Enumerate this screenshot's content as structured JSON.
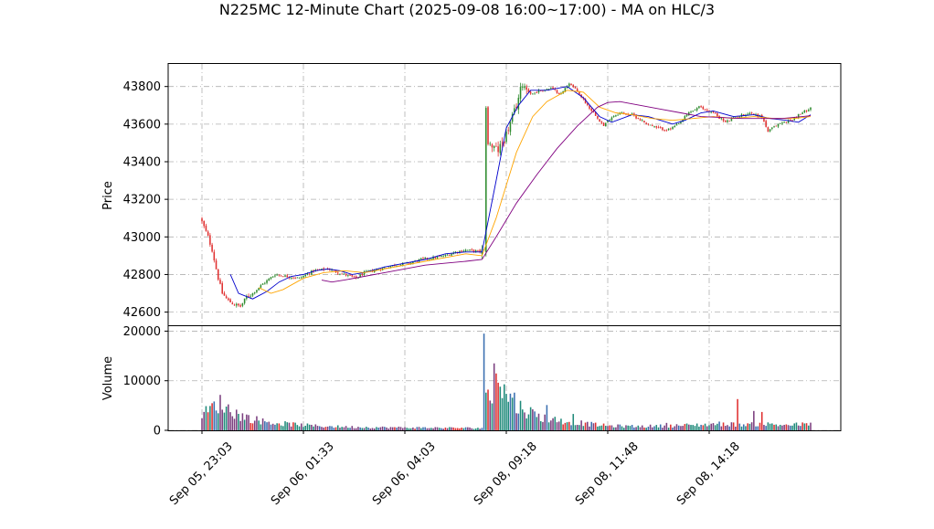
{
  "chart_data": {
    "type": "candlestick",
    "title": "N225MC 12-Minute Chart (2025-09-08 16:00~17:00) - MA on HLC/3",
    "price_panel": {
      "ylabel": "Price",
      "yticks": [
        42600,
        42800,
        43000,
        43200,
        43400,
        43600,
        43800
      ],
      "ylim": [
        42530,
        43920
      ],
      "grid": true
    },
    "volume_panel": {
      "ylabel": "Volume",
      "yticks": [
        0,
        10000,
        20000
      ],
      "ylim": [
        0,
        21000
      ],
      "grid": true
    },
    "x_ticks": [
      {
        "index": 0,
        "label": "Sep 05, 23:03"
      },
      {
        "index": 50,
        "label": "Sep 06, 01:33"
      },
      {
        "index": 100,
        "label": "Sep 06, 04:03"
      },
      {
        "index": 150,
        "label": "Sep 08, 09:18"
      },
      {
        "index": 200,
        "label": "Sep 08, 11:48"
      },
      {
        "index": 250,
        "label": "Sep 08, 14:18"
      }
    ],
    "bar_count": 301,
    "colors": {
      "up": "#2e8b2e",
      "down": "#e03030",
      "vol_a": "#7b3f7f",
      "vol_b": "#1f8a7a",
      "vol_c": "#3a6fb0",
      "ma_short": "#0000cc",
      "ma_mid": "#ffa500",
      "ma_long": "#800080",
      "grid": "#b0b0b0"
    },
    "close_anchors": [
      [
        0,
        43080
      ],
      [
        3,
        43000
      ],
      [
        5,
        42930
      ],
      [
        8,
        42780
      ],
      [
        10,
        42700
      ],
      [
        13,
        42660
      ],
      [
        16,
        42640
      ],
      [
        19,
        42630
      ],
      [
        22,
        42680
      ],
      [
        25,
        42700
      ],
      [
        30,
        42750
      ],
      [
        36,
        42800
      ],
      [
        42,
        42790
      ],
      [
        48,
        42780
      ],
      [
        55,
        42820
      ],
      [
        62,
        42830
      ],
      [
        70,
        42800
      ],
      [
        76,
        42780
      ],
      [
        80,
        42810
      ],
      [
        88,
        42830
      ],
      [
        95,
        42850
      ],
      [
        102,
        42860
      ],
      [
        108,
        42880
      ],
      [
        115,
        42890
      ],
      [
        120,
        42900
      ],
      [
        125,
        42920
      ],
      [
        130,
        42930
      ],
      [
        139,
        42920
      ],
      [
        140,
        43700
      ],
      [
        141,
        43500
      ],
      [
        143,
        43480
      ],
      [
        146,
        43460
      ],
      [
        149,
        43520
      ],
      [
        152,
        43600
      ],
      [
        155,
        43700
      ],
      [
        158,
        43820
      ],
      [
        162,
        43760
      ],
      [
        167,
        43780
      ],
      [
        172,
        43790
      ],
      [
        177,
        43760
      ],
      [
        181,
        43820
      ],
      [
        186,
        43760
      ],
      [
        190,
        43700
      ],
      [
        194,
        43650
      ],
      [
        198,
        43590
      ],
      [
        202,
        43640
      ],
      [
        206,
        43660
      ],
      [
        212,
        43650
      ],
      [
        218,
        43610
      ],
      [
        224,
        43580
      ],
      [
        230,
        43570
      ],
      [
        235,
        43600
      ],
      [
        240,
        43660
      ],
      [
        245,
        43690
      ],
      [
        252,
        43660
      ],
      [
        258,
        43610
      ],
      [
        264,
        43640
      ],
      [
        270,
        43660
      ],
      [
        276,
        43640
      ],
      [
        279,
        43560
      ],
      [
        284,
        43600
      ],
      [
        290,
        43620
      ],
      [
        296,
        43660
      ],
      [
        300,
        43690
      ]
    ],
    "ma_short_points": [
      [
        14,
        42800
      ],
      [
        18,
        42700
      ],
      [
        25,
        42670
      ],
      [
        32,
        42710
      ],
      [
        38,
        42760
      ],
      [
        44,
        42790
      ],
      [
        50,
        42800
      ],
      [
        56,
        42820
      ],
      [
        62,
        42830
      ],
      [
        68,
        42820
      ],
      [
        74,
        42800
      ],
      [
        80,
        42810
      ],
      [
        90,
        42840
      ],
      [
        100,
        42860
      ],
      [
        110,
        42880
      ],
      [
        120,
        42910
      ],
      [
        130,
        42920
      ],
      [
        138,
        42920
      ],
      [
        145,
        43300
      ],
      [
        150,
        43580
      ],
      [
        156,
        43700
      ],
      [
        162,
        43780
      ],
      [
        170,
        43780
      ],
      [
        180,
        43800
      ],
      [
        188,
        43740
      ],
      [
        196,
        43640
      ],
      [
        202,
        43610
      ],
      [
        212,
        43650
      ],
      [
        220,
        43640
      ],
      [
        226,
        43620
      ],
      [
        232,
        43600
      ],
      [
        238,
        43620
      ],
      [
        246,
        43660
      ],
      [
        252,
        43670
      ],
      [
        262,
        43640
      ],
      [
        272,
        43650
      ],
      [
        280,
        43630
      ],
      [
        288,
        43620
      ],
      [
        294,
        43610
      ],
      [
        300,
        43650
      ]
    ],
    "ma_mid_points": [
      [
        28,
        42730
      ],
      [
        34,
        42700
      ],
      [
        40,
        42720
      ],
      [
        50,
        42780
      ],
      [
        60,
        42810
      ],
      [
        70,
        42820
      ],
      [
        80,
        42810
      ],
      [
        90,
        42830
      ],
      [
        100,
        42850
      ],
      [
        110,
        42870
      ],
      [
        120,
        42890
      ],
      [
        130,
        42910
      ],
      [
        138,
        42900
      ],
      [
        145,
        43100
      ],
      [
        155,
        43450
      ],
      [
        163,
        43640
      ],
      [
        170,
        43720
      ],
      [
        180,
        43780
      ],
      [
        188,
        43770
      ],
      [
        196,
        43690
      ],
      [
        204,
        43660
      ],
      [
        212,
        43650
      ],
      [
        222,
        43630
      ],
      [
        232,
        43620
      ],
      [
        242,
        43630
      ],
      [
        252,
        43640
      ],
      [
        262,
        43630
      ],
      [
        272,
        43640
      ],
      [
        282,
        43630
      ],
      [
        292,
        43630
      ],
      [
        300,
        43640
      ]
    ],
    "ma_long_points": [
      [
        59,
        42770
      ],
      [
        64,
        42760
      ],
      [
        70,
        42770
      ],
      [
        80,
        42790
      ],
      [
        90,
        42810
      ],
      [
        100,
        42830
      ],
      [
        110,
        42850
      ],
      [
        120,
        42860
      ],
      [
        130,
        42870
      ],
      [
        138,
        42880
      ],
      [
        145,
        43000
      ],
      [
        155,
        43180
      ],
      [
        165,
        43330
      ],
      [
        175,
        43470
      ],
      [
        185,
        43590
      ],
      [
        195,
        43690
      ],
      [
        200,
        43715
      ],
      [
        206,
        43720
      ],
      [
        216,
        43700
      ],
      [
        226,
        43680
      ],
      [
        236,
        43660
      ],
      [
        246,
        43640
      ],
      [
        256,
        43635
      ],
      [
        266,
        43630
      ],
      [
        276,
        43630
      ],
      [
        286,
        43630
      ],
      [
        296,
        43640
      ],
      [
        300,
        43645
      ]
    ],
    "volume_anchors": [
      [
        0,
        3000
      ],
      [
        5,
        4500
      ],
      [
        8,
        5500
      ],
      [
        10,
        5200
      ],
      [
        14,
        4000
      ],
      [
        18,
        3200
      ],
      [
        22,
        2600
      ],
      [
        28,
        2000
      ],
      [
        35,
        1500
      ],
      [
        45,
        1200
      ],
      [
        55,
        900
      ],
      [
        70,
        700
      ],
      [
        85,
        600
      ],
      [
        100,
        550
      ],
      [
        120,
        500
      ],
      [
        139,
        450
      ],
      [
        140,
        19000
      ],
      [
        141,
        7500
      ],
      [
        143,
        6000
      ],
      [
        145,
        13000
      ],
      [
        147,
        9000
      ],
      [
        150,
        7000
      ],
      [
        155,
        5000
      ],
      [
        160,
        4000
      ],
      [
        166,
        2800
      ],
      [
        172,
        2200
      ],
      [
        180,
        1800
      ],
      [
        190,
        1300
      ],
      [
        200,
        900
      ],
      [
        215,
        800
      ],
      [
        230,
        900
      ],
      [
        245,
        1100
      ],
      [
        255,
        1300
      ],
      [
        265,
        1200
      ],
      [
        275,
        1300
      ],
      [
        285,
        1100
      ],
      [
        300,
        1200
      ]
    ],
    "volume_spikes": [
      [
        139,
        19500
      ],
      [
        140,
        7600
      ],
      [
        142,
        6000
      ],
      [
        144,
        13500
      ],
      [
        146,
        9600
      ],
      [
        147,
        8800
      ],
      [
        152,
        7400
      ],
      [
        154,
        7600
      ],
      [
        170,
        5100
      ],
      [
        183,
        3300
      ],
      [
        264,
        6300
      ],
      [
        272,
        3900
      ],
      [
        276,
        3700
      ],
      [
        229,
        1500
      ]
    ]
  }
}
